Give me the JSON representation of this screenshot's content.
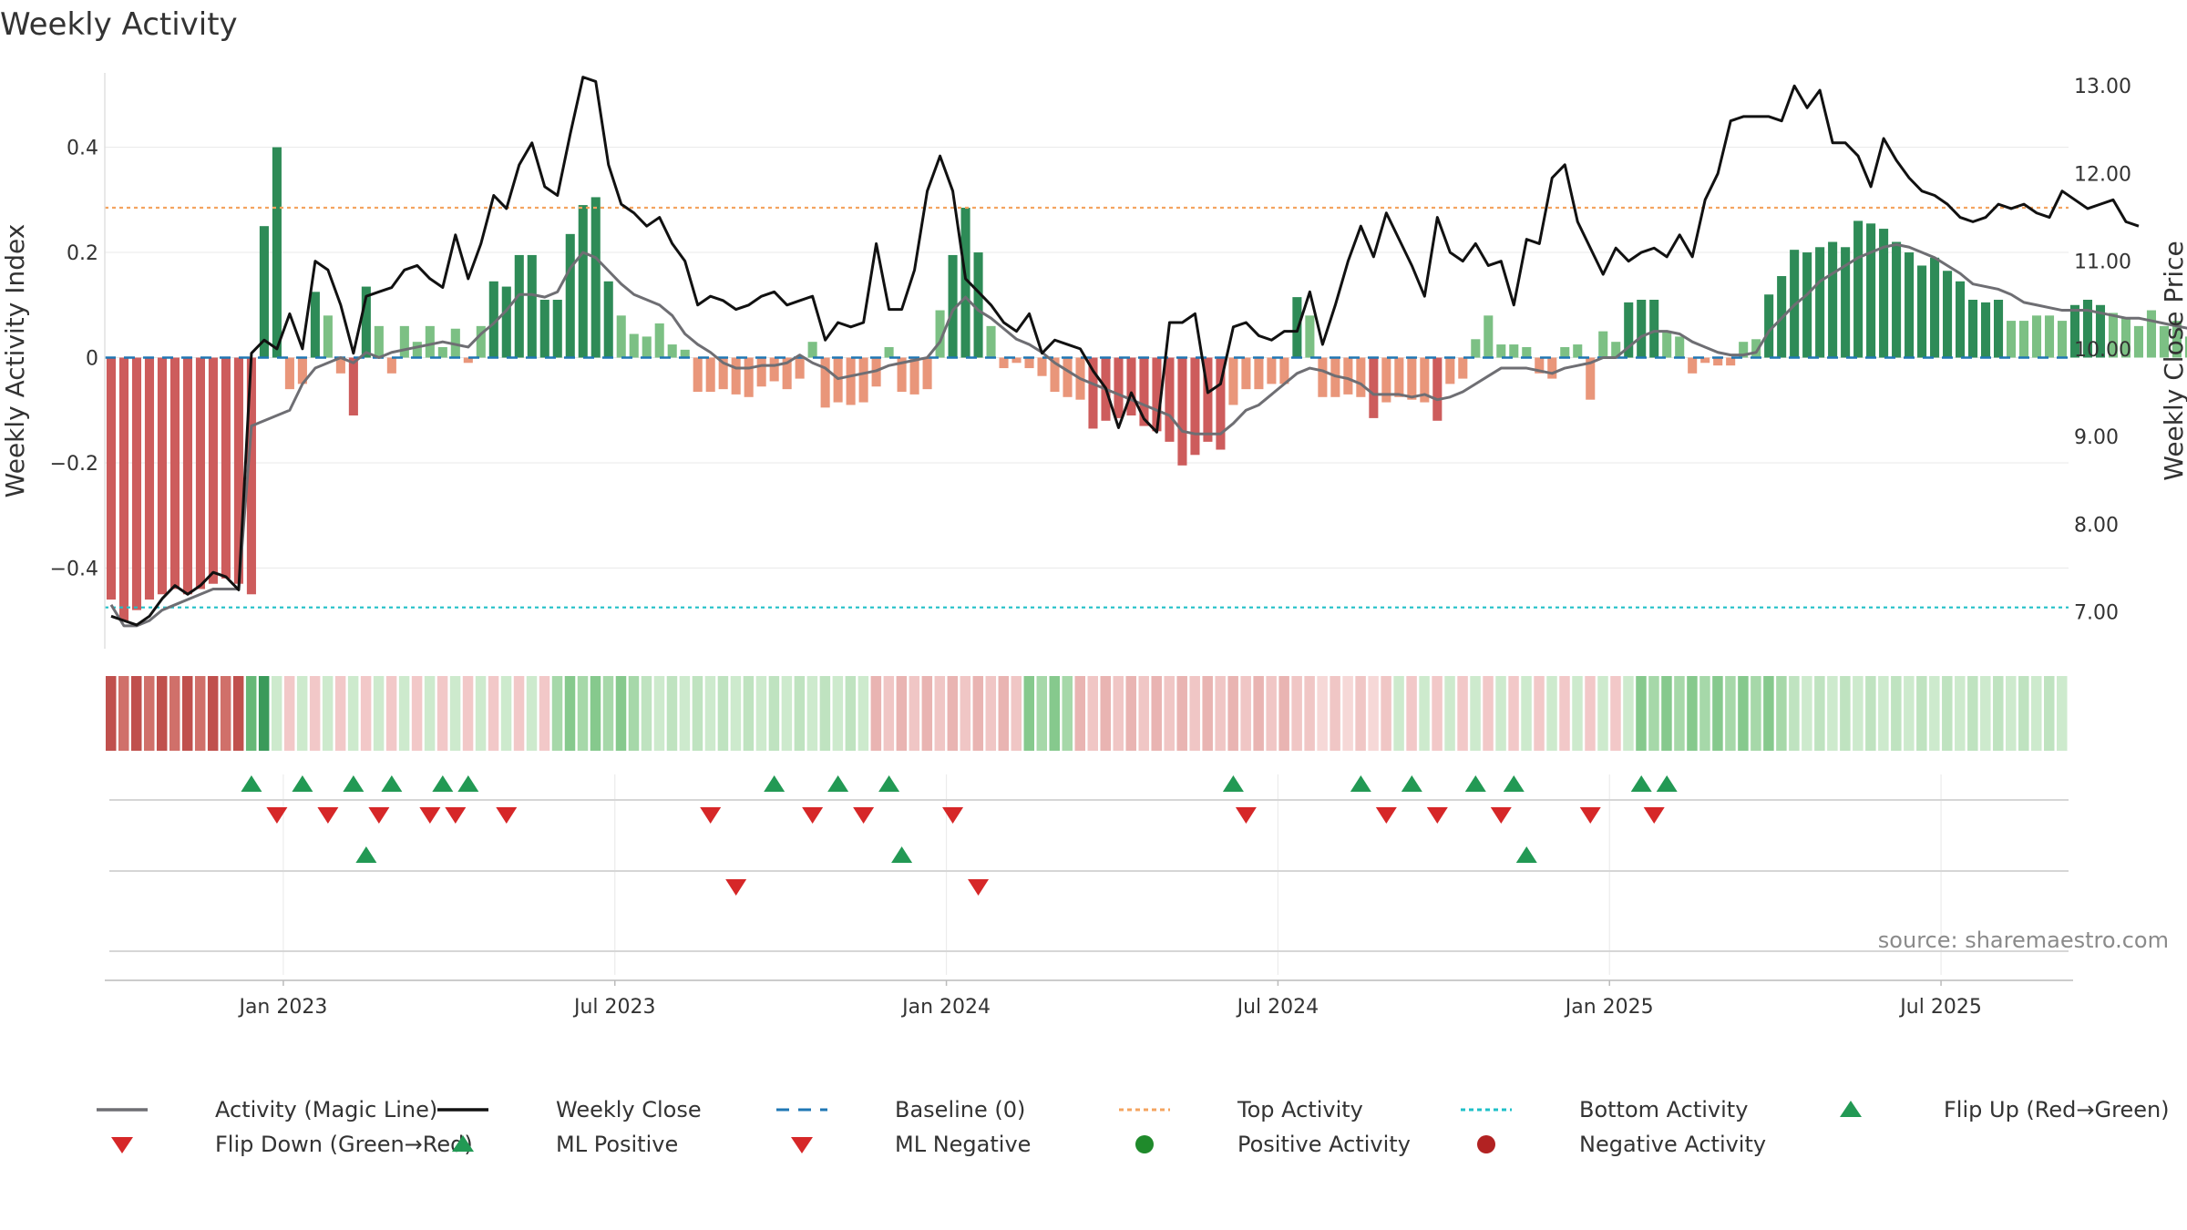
{
  "colors": {
    "pos_dark": "#2e8b57",
    "pos_light": "#7cc084",
    "neg_dark": "#cd5c5c",
    "neg_light": "#e9967a",
    "magic": "#6e6e73",
    "close": "#111111",
    "baseline": "#1f77b4",
    "top_line": "#f4a460",
    "bottom_line": "#20c0c8",
    "flip_up": "#229954",
    "flip_down": "#d62728",
    "pos_dot": "#1f8a2b",
    "neg_dot": "#b22222",
    "grid": "#e8e8e8",
    "source": "#8a8a8a"
  },
  "chart_data": {
    "type": "bar",
    "title": "Weekly Activity",
    "ylabel": "Weekly Activity Index",
    "y2label": "Weekly Close Price",
    "ylim": [
      -0.55,
      0.55
    ],
    "y2lim": [
      6.6,
      13.2
    ],
    "yticks": [
      -0.4,
      -0.2,
      0,
      0.2,
      0.4
    ],
    "ytick_labels": [
      "−0.4",
      "−0.2",
      "0",
      "0.2",
      "0.4"
    ],
    "y2ticks": [
      7,
      8,
      9,
      10,
      11,
      12,
      13
    ],
    "y2tick_labels": [
      "7.00",
      "8.00",
      "9.00",
      "10.00",
      "11.00",
      "12.00",
      "13.00"
    ],
    "x_range_weeks": [
      0,
      154
    ],
    "xticks": [
      {
        "week": 14,
        "label": "Jan 2023"
      },
      {
        "week": 40,
        "label": "Jul 2023"
      },
      {
        "week": 66,
        "label": "Jan 2024"
      },
      {
        "week": 92,
        "label": "Jul 2024"
      },
      {
        "week": 118,
        "label": "Jan 2025"
      },
      {
        "week": 144,
        "label": "Jul 2025"
      }
    ],
    "top_activity": 0.285,
    "bottom_activity": -0.475,
    "baseline": 0,
    "activity": [
      -0.46,
      -0.5,
      -0.48,
      -0.46,
      -0.45,
      -0.44,
      -0.45,
      -0.44,
      -0.43,
      -0.42,
      -0.43,
      -0.45,
      0.25,
      0.4,
      -0.06,
      -0.05,
      0.125,
      0.08,
      -0.03,
      -0.11,
      0.135,
      0.06,
      -0.03,
      0.06,
      0.03,
      0.06,
      0.02,
      0.055,
      -0.01,
      0.06,
      0.145,
      0.135,
      0.195,
      0.195,
      0.11,
      0.11,
      0.235,
      0.29,
      0.305,
      0.145,
      0.08,
      0.045,
      0.04,
      0.065,
      0.025,
      0.015,
      -0.065,
      -0.065,
      -0.06,
      -0.07,
      -0.075,
      -0.055,
      -0.045,
      -0.06,
      -0.04,
      0.03,
      -0.095,
      -0.085,
      -0.09,
      -0.085,
      -0.055,
      0.02,
      -0.065,
      -0.07,
      -0.06,
      0.09,
      0.195,
      0.285,
      0.2,
      0.06,
      -0.02,
      -0.01,
      -0.02,
      -0.035,
      -0.065,
      -0.075,
      -0.08,
      -0.135,
      -0.12,
      -0.115,
      -0.11,
      -0.13,
      -0.14,
      -0.16,
      -0.205,
      -0.185,
      -0.16,
      -0.175,
      -0.09,
      -0.06,
      -0.06,
      -0.05,
      -0.05,
      0.115,
      0.08,
      -0.075,
      -0.075,
      -0.07,
      -0.075,
      -0.115,
      -0.085,
      -0.075,
      -0.08,
      -0.085,
      -0.12,
      -0.05,
      -0.04,
      0.035,
      0.08,
      0.025,
      0.025,
      0.02,
      -0.03,
      -0.04,
      0.02,
      0.025,
      -0.08,
      0.05,
      0.03,
      0.105,
      0.11,
      0.11,
      0.05,
      0.04,
      -0.03,
      -0.01,
      -0.015,
      -0.015,
      0.03,
      0.035,
      0.12,
      0.155,
      0.205,
      0.2,
      0.21,
      0.22,
      0.21,
      0.26,
      0.255,
      0.245,
      0.22,
      0.2,
      0.175,
      0.19,
      0.165,
      0.145,
      0.11,
      0.105,
      0.11,
      0.07,
      0.07,
      0.08,
      0.08,
      0.07,
      0.1,
      0.11,
      0.1,
      0.085,
      0.075,
      0.06,
      0.09,
      0.06,
      0.07,
      0.04,
      0.035
    ],
    "magic_line": [
      -0.47,
      -0.51,
      -0.51,
      -0.5,
      -0.48,
      -0.47,
      -0.46,
      -0.45,
      -0.44,
      -0.44,
      -0.44,
      -0.13,
      -0.12,
      -0.11,
      -0.1,
      -0.05,
      -0.02,
      -0.01,
      0.0,
      -0.01,
      0.01,
      0.0,
      0.01,
      0.015,
      0.02,
      0.025,
      0.03,
      0.025,
      0.02,
      0.045,
      0.065,
      0.09,
      0.12,
      0.12,
      0.115,
      0.125,
      0.17,
      0.2,
      0.19,
      0.165,
      0.14,
      0.12,
      0.11,
      0.1,
      0.08,
      0.045,
      0.025,
      0.01,
      -0.01,
      -0.02,
      -0.02,
      -0.015,
      -0.015,
      -0.01,
      0.005,
      -0.01,
      -0.02,
      -0.04,
      -0.035,
      -0.03,
      -0.025,
      -0.015,
      -0.01,
      -0.005,
      0.0,
      0.03,
      0.09,
      0.115,
      0.09,
      0.075,
      0.055,
      0.035,
      0.025,
      0.01,
      -0.01,
      -0.025,
      -0.04,
      -0.05,
      -0.06,
      -0.07,
      -0.08,
      -0.09,
      -0.1,
      -0.11,
      -0.14,
      -0.145,
      -0.145,
      -0.145,
      -0.125,
      -0.1,
      -0.09,
      -0.07,
      -0.05,
      -0.03,
      -0.02,
      -0.025,
      -0.035,
      -0.04,
      -0.05,
      -0.07,
      -0.07,
      -0.07,
      -0.075,
      -0.07,
      -0.08,
      -0.075,
      -0.065,
      -0.05,
      -0.035,
      -0.02,
      -0.02,
      -0.02,
      -0.025,
      -0.03,
      -0.02,
      -0.015,
      -0.01,
      0.0,
      0.0,
      0.02,
      0.04,
      0.05,
      0.05,
      0.045,
      0.03,
      0.02,
      0.01,
      0.005,
      0.005,
      0.01,
      0.05,
      0.075,
      0.1,
      0.12,
      0.145,
      0.16,
      0.175,
      0.19,
      0.2,
      0.21,
      0.215,
      0.21,
      0.2,
      0.19,
      0.175,
      0.16,
      0.14,
      0.135,
      0.13,
      0.12,
      0.105,
      0.1,
      0.095,
      0.09,
      0.09,
      0.09,
      0.085,
      0.08,
      0.075,
      0.075,
      0.07,
      0.065,
      0.06,
      0.055
    ],
    "weekly_close": [
      6.95,
      6.9,
      6.85,
      6.95,
      7.15,
      7.3,
      7.2,
      7.3,
      7.45,
      7.4,
      7.25,
      9.95,
      10.1,
      10.0,
      10.4,
      10.0,
      11.0,
      10.9,
      10.5,
      9.95,
      10.6,
      10.65,
      10.7,
      10.9,
      10.95,
      10.8,
      10.7,
      11.3,
      10.8,
      11.2,
      11.75,
      11.6,
      12.1,
      12.35,
      11.85,
      11.75,
      12.45,
      13.1,
      13.05,
      12.1,
      11.65,
      11.55,
      11.4,
      11.5,
      11.2,
      11.0,
      10.5,
      10.6,
      10.55,
      10.45,
      10.5,
      10.6,
      10.65,
      10.5,
      10.55,
      10.6,
      10.1,
      10.3,
      10.25,
      10.3,
      11.2,
      10.45,
      10.45,
      10.9,
      11.8,
      12.2,
      11.8,
      10.8,
      10.65,
      10.5,
      10.3,
      10.2,
      10.4,
      9.95,
      10.1,
      10.05,
      10.0,
      9.75,
      9.55,
      9.1,
      9.5,
      9.2,
      9.05,
      10.3,
      10.3,
      10.4,
      9.5,
      9.6,
      10.25,
      10.3,
      10.15,
      10.1,
      10.2,
      10.2,
      10.65,
      10.05,
      10.5,
      11.0,
      11.4,
      11.05,
      11.55,
      11.25,
      10.95,
      10.6,
      11.5,
      11.1,
      11.0,
      11.2,
      10.95,
      11.0,
      10.5,
      11.25,
      11.2,
      11.95,
      12.1,
      11.45,
      11.15,
      10.85,
      11.15,
      11.0,
      11.1,
      11.15,
      11.05,
      11.3,
      11.05,
      11.7,
      12.0,
      12.6,
      12.65,
      12.65,
      12.65,
      12.6,
      13.0,
      12.75,
      12.95,
      12.35,
      12.35,
      12.2,
      11.85,
      12.4,
      12.15,
      11.95,
      11.8,
      11.75,
      11.65,
      11.5,
      11.45,
      11.5,
      11.65,
      11.6,
      11.65,
      11.55,
      11.5,
      11.8,
      11.7,
      11.6,
      11.65,
      11.7,
      11.45,
      11.4
    ],
    "strip": [
      {
        "from": 0,
        "to": 11,
        "state": "neg-strong"
      },
      {
        "from": 11,
        "to": 13,
        "state": "pos-strong"
      },
      {
        "from": 13,
        "to": 35,
        "state": "mixed-pale"
      },
      {
        "from": 35,
        "to": 42,
        "state": "pos-mid"
      },
      {
        "from": 42,
        "to": 60,
        "state": "pos-pale"
      },
      {
        "from": 60,
        "to": 72,
        "state": "neg-pale"
      },
      {
        "from": 72,
        "to": 76,
        "state": "pos-mid"
      },
      {
        "from": 76,
        "to": 94,
        "state": "neg-pale"
      },
      {
        "from": 94,
        "to": 101,
        "state": "neg-pale2"
      },
      {
        "from": 101,
        "to": 120,
        "state": "mixed-pale"
      },
      {
        "from": 120,
        "to": 132,
        "state": "pos-mid"
      },
      {
        "from": 132,
        "to": 154,
        "state": "pos-pale"
      }
    ],
    "flip_up_weeks": [
      11,
      15,
      19,
      22,
      26,
      28,
      52,
      57,
      61,
      88,
      98,
      102,
      107,
      110,
      120,
      122
    ],
    "flip_down_weeks": [
      13,
      17,
      21,
      25,
      27,
      31,
      47,
      55,
      59,
      66,
      89,
      100,
      104,
      109,
      116,
      121
    ],
    "ml_positive_weeks": [
      20,
      62,
      111
    ],
    "ml_negative_weeks": [
      49,
      68
    ],
    "source": "source: sharemaestro.com",
    "legend": [
      {
        "key": "magic",
        "label": "Activity (Magic Line)"
      },
      {
        "key": "close",
        "label": "Weekly Close"
      },
      {
        "key": "baseline",
        "label": "Baseline (0)"
      },
      {
        "key": "top",
        "label": "Top Activity"
      },
      {
        "key": "bottom",
        "label": "Bottom Activity"
      },
      {
        "key": "flip_up",
        "label": "Flip Up (Red→Green)"
      },
      {
        "key": "flip_down",
        "label": "Flip Down (Green→Red)"
      },
      {
        "key": "ml_pos",
        "label": "ML Positive"
      },
      {
        "key": "ml_neg",
        "label": "ML Negative"
      },
      {
        "key": "pos_act",
        "label": "Positive Activity"
      },
      {
        "key": "neg_act",
        "label": "Negative Activity"
      }
    ]
  }
}
